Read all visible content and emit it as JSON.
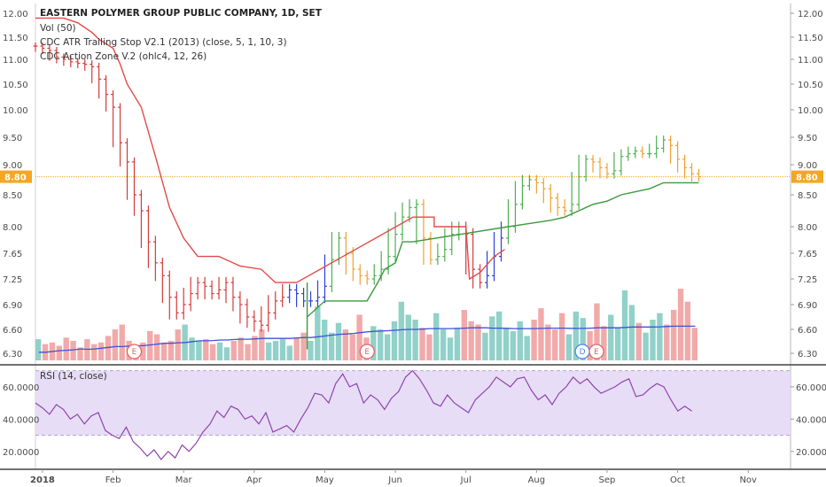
{
  "chart_data": {
    "type": "candlestick",
    "title": "EASTERN POLYMER GROUP PUBLIC COMPANY, 1D, SET",
    "legend": [
      "Vol (50)",
      "CDC ATR Trailing Stop V2.1 (2013) (close, 5, 1, 10, 3)",
      "CDC Action Zone V.2 (ohlc4, 12, 26)"
    ],
    "price_axis": {
      "ticks": [
        "12.00",
        "11.50",
        "11.00",
        "10.50",
        "10.00",
        "9.50",
        "9.00",
        "8.50",
        "8.00",
        "7.65",
        "7.25",
        "6.90",
        "6.60",
        "6.30"
      ],
      "range": [
        6.3,
        12.0
      ]
    },
    "last_price": {
      "value": 8.8,
      "label": "8.80",
      "color": "#f5a623"
    },
    "time_axis": {
      "labels": [
        "2018",
        "Feb",
        "Mar",
        "Apr",
        "May",
        "Jun",
        "Jul",
        "Aug",
        "Sep",
        "Oct",
        "Nov"
      ],
      "month_positions": [
        0,
        1,
        2,
        3,
        4,
        5,
        6,
        7,
        8,
        9,
        10
      ],
      "range": [
        -0.1,
        10.6
      ]
    },
    "price_series": [
      [
        -0.1,
        11.3
      ],
      [
        0.0,
        11.25
      ],
      [
        0.1,
        11.2
      ],
      [
        0.2,
        11.05
      ],
      [
        0.3,
        11.0
      ],
      [
        0.4,
        10.95
      ],
      [
        0.5,
        10.92
      ],
      [
        0.6,
        10.9
      ],
      [
        0.7,
        10.85
      ],
      [
        0.8,
        10.6
      ],
      [
        0.9,
        10.3
      ],
      [
        1.0,
        10.05
      ],
      [
        1.1,
        9.4
      ],
      [
        1.2,
        9.05
      ],
      [
        1.3,
        8.5
      ],
      [
        1.4,
        8.25
      ],
      [
        1.5,
        7.8
      ],
      [
        1.6,
        7.5
      ],
      [
        1.7,
        7.3
      ],
      [
        1.8,
        7.0
      ],
      [
        1.9,
        6.8
      ],
      [
        2.0,
        6.9
      ],
      [
        2.1,
        7.05
      ],
      [
        2.2,
        7.2
      ],
      [
        2.3,
        7.15
      ],
      [
        2.4,
        7.05
      ],
      [
        2.5,
        7.1
      ],
      [
        2.6,
        7.2
      ],
      [
        2.7,
        7.0
      ],
      [
        2.8,
        6.9
      ],
      [
        2.9,
        6.75
      ],
      [
        3.0,
        6.7
      ],
      [
        3.1,
        6.65
      ],
      [
        3.2,
        6.8
      ],
      [
        3.3,
        6.95
      ],
      [
        3.4,
        7.0
      ],
      [
        3.5,
        7.1
      ],
      [
        3.6,
        7.05
      ],
      [
        3.7,
        6.95
      ],
      [
        3.8,
        6.95
      ],
      [
        3.9,
        7.0
      ],
      [
        4.0,
        7.15
      ],
      [
        4.1,
        7.55
      ],
      [
        4.2,
        7.85
      ],
      [
        4.3,
        7.65
      ],
      [
        4.4,
        7.4
      ],
      [
        4.5,
        7.3
      ],
      [
        4.6,
        7.25
      ],
      [
        4.7,
        7.3
      ],
      [
        4.8,
        7.4
      ],
      [
        4.9,
        7.6
      ],
      [
        5.0,
        7.9
      ],
      [
        5.1,
        8.15
      ],
      [
        5.2,
        8.3
      ],
      [
        5.3,
        8.35
      ],
      [
        5.4,
        7.85
      ],
      [
        5.5,
        7.55
      ],
      [
        5.6,
        7.6
      ],
      [
        5.7,
        7.7
      ],
      [
        5.8,
        7.9
      ],
      [
        5.9,
        8.0
      ],
      [
        6.0,
        7.9
      ],
      [
        6.1,
        7.4
      ],
      [
        6.2,
        7.2
      ],
      [
        6.3,
        7.3
      ],
      [
        6.4,
        7.6
      ],
      [
        6.5,
        7.85
      ],
      [
        6.6,
        8.0
      ],
      [
        6.7,
        8.35
      ],
      [
        6.8,
        8.65
      ],
      [
        6.9,
        8.75
      ],
      [
        7.0,
        8.7
      ],
      [
        7.1,
        8.6
      ],
      [
        7.2,
        8.45
      ],
      [
        7.3,
        8.3
      ],
      [
        7.4,
        8.25
      ],
      [
        7.5,
        8.35
      ],
      [
        7.6,
        8.8
      ],
      [
        7.7,
        9.1
      ],
      [
        7.8,
        9.05
      ],
      [
        7.9,
        8.95
      ],
      [
        8.0,
        8.85
      ],
      [
        8.1,
        8.9
      ],
      [
        8.2,
        9.15
      ],
      [
        8.3,
        9.2
      ],
      [
        8.4,
        9.25
      ],
      [
        8.5,
        9.2
      ],
      [
        8.6,
        9.2
      ],
      [
        8.7,
        9.3
      ],
      [
        8.8,
        9.45
      ],
      [
        8.9,
        9.35
      ],
      [
        9.0,
        9.1
      ],
      [
        9.1,
        8.95
      ],
      [
        9.2,
        8.85
      ],
      [
        9.3,
        8.8
      ]
    ],
    "trailing_stop": [
      [
        -0.1,
        11.9
      ],
      [
        0.3,
        11.9
      ],
      [
        0.5,
        11.8
      ],
      [
        0.7,
        11.6
      ],
      [
        0.8,
        11.45
      ],
      [
        1.0,
        11.25
      ],
      [
        1.1,
        10.9
      ],
      [
        1.2,
        10.5
      ],
      [
        1.4,
        10.05
      ],
      [
        1.6,
        9.15
      ],
      [
        1.8,
        8.3
      ],
      [
        2.0,
        7.85
      ],
      [
        2.2,
        7.6
      ],
      [
        2.5,
        7.6
      ],
      [
        2.8,
        7.45
      ],
      [
        3.1,
        7.4
      ],
      [
        3.3,
        7.2
      ],
      [
        3.6,
        7.2
      ],
      [
        3.75,
        7.2
      ],
      [
        3.75,
        6.35
      ],
      [
        3.75,
        6.75
      ],
      [
        4.0,
        6.95
      ],
      [
        4.3,
        6.95
      ],
      [
        4.6,
        6.95
      ],
      [
        4.75,
        7.2
      ],
      [
        4.85,
        7.4
      ],
      [
        5.0,
        7.5
      ],
      [
        5.1,
        7.8
      ],
      [
        5.25,
        7.8
      ],
      [
        5.25,
        8.15
      ],
      [
        5.55,
        8.15
      ],
      [
        5.55,
        8.0
      ],
      [
        5.8,
        8.0
      ],
      [
        6.0,
        8.0
      ],
      [
        6.05,
        7.25
      ],
      [
        6.2,
        7.35
      ],
      [
        6.4,
        7.6
      ],
      [
        6.55,
        7.7
      ],
      [
        6.6,
        8.0
      ],
      [
        6.9,
        8.05
      ],
      [
        7.2,
        8.1
      ],
      [
        7.4,
        8.15
      ],
      [
        7.6,
        8.25
      ],
      [
        7.8,
        8.35
      ],
      [
        8.0,
        8.4
      ],
      [
        8.2,
        8.5
      ],
      [
        8.4,
        8.55
      ],
      [
        8.6,
        8.6
      ],
      [
        8.8,
        8.7
      ],
      [
        9.3,
        8.7
      ]
    ],
    "volume_axis_max": 5,
    "volume": [
      1.3,
      1.0,
      1.1,
      0.9,
      1.4,
      1.2,
      0.8,
      1.3,
      1.0,
      1.1,
      1.5,
      1.9,
      2.2,
      1.2,
      0.9,
      1.1,
      1.8,
      1.6,
      1.1,
      1.2,
      1.9,
      2.2,
      1.4,
      1.2,
      1.3,
      1.0,
      1.1,
      0.8,
      1.2,
      1.4,
      1.0,
      1.5,
      1.9,
      1.1,
      1.2,
      1.3,
      0.9,
      1.4,
      1.7,
      1.2,
      3.3,
      2.5,
      1.7,
      2.3,
      1.9,
      1.6,
      2.8,
      1.4,
      2.1,
      1.9,
      1.6,
      2.4,
      3.6,
      2.8,
      2.5,
      2.0,
      1.6,
      2.9,
      1.9,
      1.4,
      2.0,
      3.1,
      2.4,
      2.2,
      1.7,
      2.7,
      3.0,
      2.0,
      1.8,
      2.4,
      1.5,
      2.5,
      3.2,
      2.2,
      1.9,
      2.9,
      1.6,
      3.0,
      2.6,
      1.8,
      3.5,
      2.1,
      2.8,
      2.0,
      4.3,
      3.4,
      2.3,
      1.7,
      2.5,
      2.9,
      2.2,
      3.1,
      4.4,
      3.6,
      2.0
    ],
    "volume_ma": [
      0.5,
      0.5,
      0.55,
      0.6,
      0.62,
      0.65,
      0.7,
      0.68,
      0.7,
      0.75,
      0.8,
      0.85,
      0.85,
      0.88,
      0.9,
      0.9,
      0.95,
      1.0,
      1.05,
      1.05,
      1.08,
      1.1,
      1.15,
      1.2,
      1.2,
      1.22,
      1.25,
      1.25,
      1.28,
      1.3,
      1.3,
      1.32,
      1.35,
      1.35,
      1.35,
      1.35,
      1.35,
      1.38,
      1.4,
      1.4,
      1.45,
      1.5,
      1.55,
      1.6,
      1.62,
      1.65,
      1.7,
      1.75,
      1.78,
      1.8,
      1.82,
      1.85,
      1.88,
      1.9,
      1.9,
      1.92,
      1.95,
      1.95,
      1.95,
      1.95,
      1.96,
      1.98,
      2.0,
      2.0,
      2.0,
      1.98,
      1.98,
      1.97,
      1.95,
      1.95,
      1.95,
      1.95,
      1.96,
      1.98,
      1.98,
      1.98,
      1.97,
      1.96,
      1.96,
      1.98,
      2.0,
      2.0,
      2.0,
      2.0,
      2.02,
      2.05,
      2.05,
      2.05,
      2.05,
      2.06,
      2.08,
      2.1,
      2.1,
      2.1,
      2.1
    ],
    "events": [
      {
        "x": 1.3,
        "label": "E",
        "color": "#e06666"
      },
      {
        "x": 4.6,
        "label": "E",
        "color": "#e06666"
      },
      {
        "x": 7.65,
        "label": "D",
        "color": "#4a86e8"
      },
      {
        "x": 7.85,
        "label": "E",
        "color": "#e06666"
      }
    ],
    "rsi": {
      "label": "RSI (14, close)",
      "ticks": [
        "60.0000",
        "40.0000",
        "20.0000"
      ],
      "range": [
        10,
        72
      ],
      "band": [
        30,
        70
      ],
      "values": [
        50,
        47,
        43,
        49,
        46,
        40,
        43,
        37,
        42,
        44,
        33,
        30,
        28,
        35,
        26,
        22,
        17,
        21,
        15,
        20,
        16,
        24,
        20,
        25,
        32,
        37,
        45,
        41,
        48,
        46,
        40,
        42,
        37,
        44,
        32,
        34,
        36,
        32,
        40,
        47,
        56,
        55,
        50,
        62,
        68,
        60,
        62,
        50,
        55,
        52,
        46,
        53,
        57,
        66,
        70,
        65,
        58,
        50,
        48,
        55,
        50,
        47,
        44,
        52,
        56,
        60,
        66,
        63,
        60,
        65,
        66,
        58,
        52,
        55,
        49,
        56,
        60,
        66,
        62,
        65,
        60,
        56,
        58,
        60,
        63,
        65,
        54,
        55,
        59,
        62,
        60,
        52,
        45,
        48,
        45
      ]
    }
  }
}
